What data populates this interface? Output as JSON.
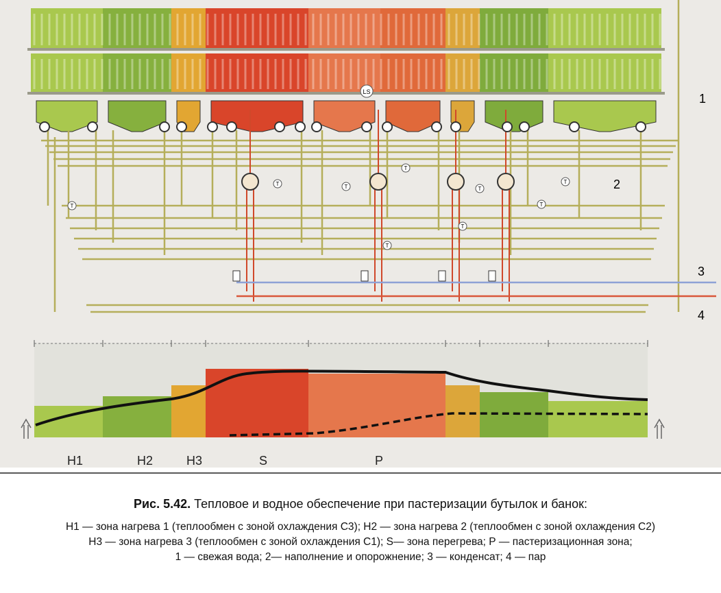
{
  "diagram": {
    "zone_labels": [
      "H1",
      "H2",
      "H3",
      "S",
      "P"
    ],
    "callouts": [
      "1",
      "2",
      "3",
      "4"
    ],
    "sensor_label": "T",
    "level_switch_label": "LS"
  },
  "caption": {
    "figure_number": "Рис. 5.42.",
    "title": "Тепловое и водное обеспечение при пастеризации бутылок и банок:",
    "legend": [
      "Н1 — зона нагрева 1 (теплообмен с зоной охлаждения С3); Н2 — зона нагрева 2 (теплообмен с зоной охлаждения С2)",
      "Н3  — зона нагрева 3 (теплообмен с зоной охлаждения С1); S— зона перегрева; Р — пастеризационная зона;",
      "1 — свежая вода; 2— наполнение и опорожнение; 3 — конденсат; 4 — пар"
    ]
  }
}
